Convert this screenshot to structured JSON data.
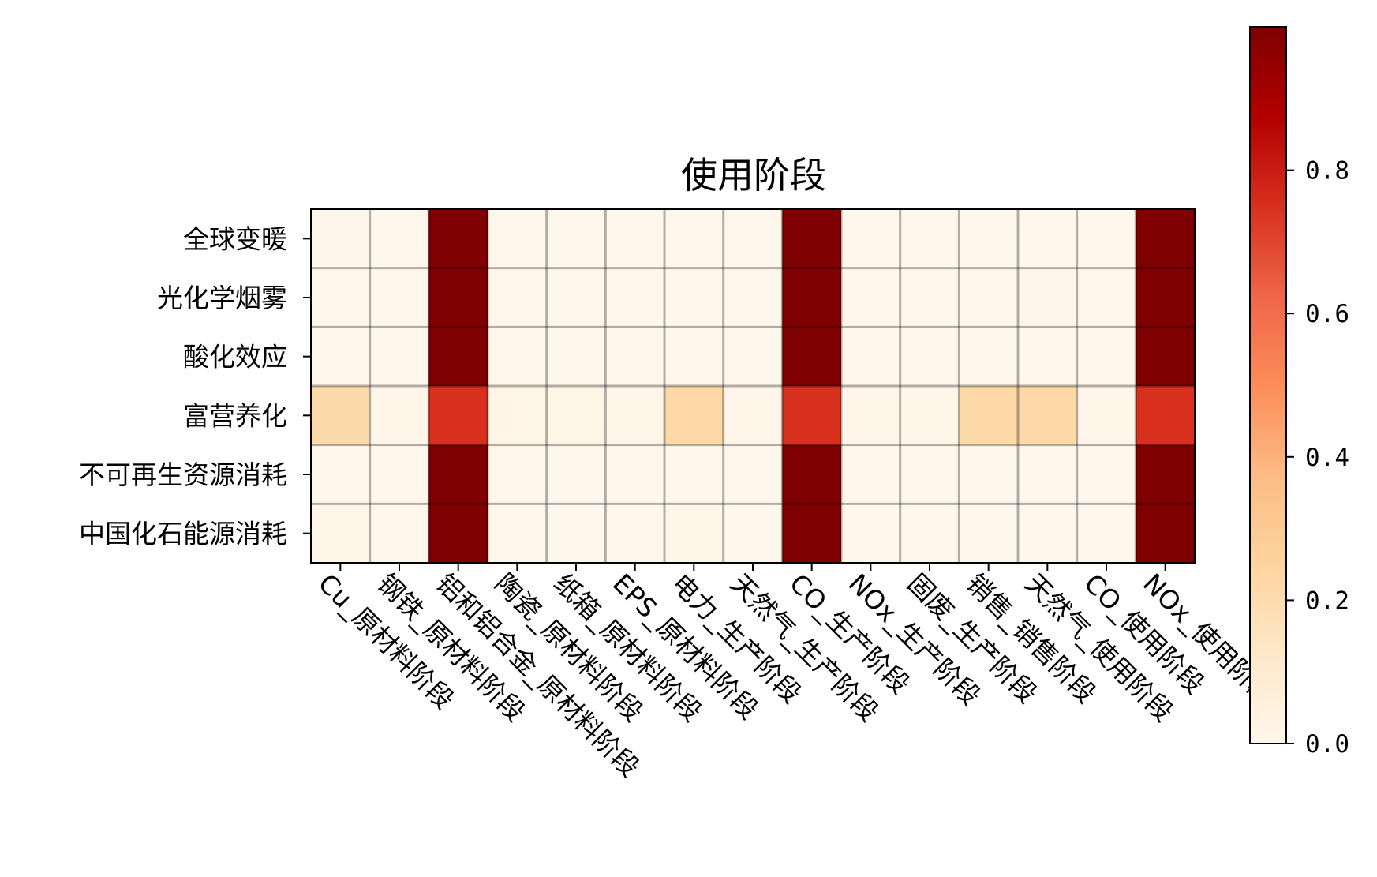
{
  "chart_data": {
    "type": "heatmap",
    "title": "使用阶段",
    "x_categories": [
      "Cu_原材料阶段",
      "钢铁_原材料阶段",
      "铝和铝合金_原材料阶段",
      "陶瓷_原材料阶段",
      "纸箱_原材料阶段",
      "EPS_原材料阶段",
      "电力_生产阶段",
      "天然气_生产阶段",
      "CO_生产阶段",
      "NOx_生产阶段",
      "固废_生产阶段",
      "销售_销售阶段",
      "天然气_使用阶段",
      "CO_使用阶段",
      "NOx_使用阶段"
    ],
    "y_categories": [
      "全球变暖",
      "光化学烟雾",
      "酸化效应",
      "富营养化",
      "不可再生资源消耗",
      "中国化石能源消耗"
    ],
    "values": [
      [
        0.005,
        0.001,
        1.0,
        0.004,
        0.003,
        0.002,
        0.003,
        0.002,
        1.0,
        0.002,
        0.001,
        0.003,
        0.004,
        0.001,
        1.0
      ],
      [
        0.003,
        0.002,
        1.0,
        0.003,
        0.003,
        0.002,
        0.004,
        0.003,
        1.0,
        0.001,
        0.002,
        0.004,
        0.005,
        0.002,
        1.0
      ],
      [
        0.004,
        0.002,
        1.0,
        0.004,
        0.004,
        0.003,
        0.004,
        0.003,
        1.0,
        0.001,
        0.002,
        0.004,
        0.004,
        0.002,
        1.0
      ],
      [
        0.21,
        0.01,
        0.75,
        0.02,
        0.02,
        0.01,
        0.22,
        0.01,
        0.75,
        0.01,
        0.01,
        0.22,
        0.22,
        0.01,
        0.75
      ],
      [
        0.003,
        0.002,
        1.0,
        0.003,
        0.003,
        0.002,
        0.003,
        0.002,
        1.0,
        0.001,
        0.002,
        0.004,
        0.004,
        0.002,
        1.0
      ],
      [
        0.015,
        0.004,
        1.0,
        0.004,
        0.004,
        0.004,
        0.008,
        0.004,
        1.0,
        0.001,
        0.002,
        0.004,
        0.004,
        0.002,
        1.0
      ]
    ],
    "colormap": "OrRd",
    "colorbar": {
      "range": [
        0,
        1
      ],
      "ticks": [
        0.0,
        0.2,
        0.4,
        0.6,
        0.8
      ],
      "tick_labels": [
        "0.0",
        "0.2",
        "0.4",
        "0.6",
        "0.8"
      ],
      "placement": "right"
    },
    "grid": true,
    "x_tick_rotation": "-45"
  }
}
